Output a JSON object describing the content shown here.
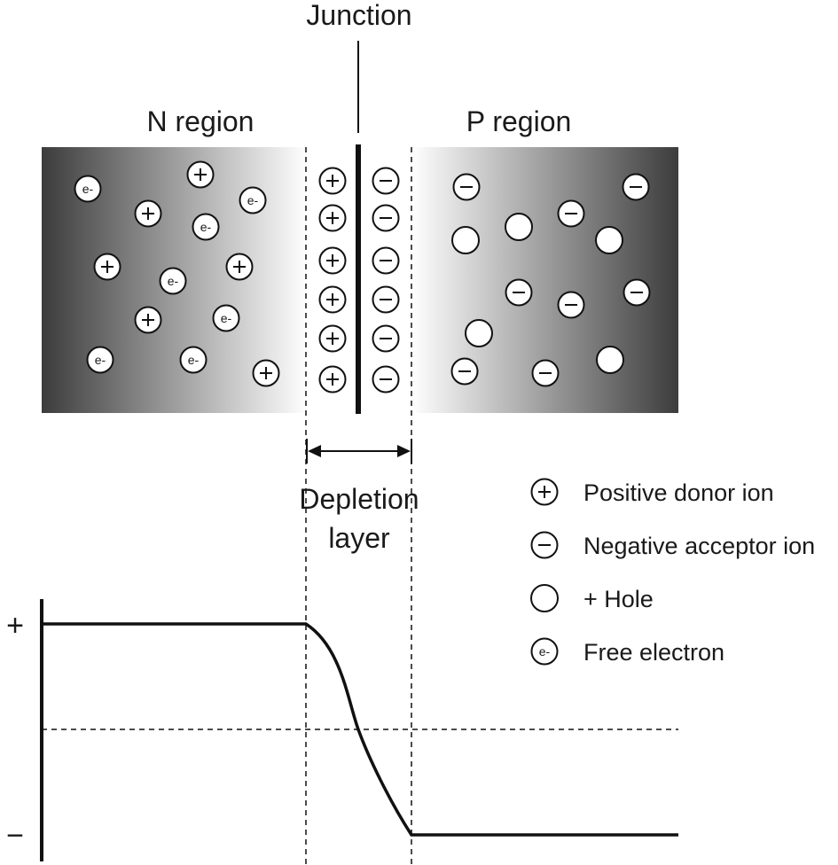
{
  "labels": {
    "junction": "Junction",
    "n_region": "N region",
    "p_region": "P region",
    "depletion_line1": "Depletion",
    "depletion_line2": "layer",
    "axis_plus": "+",
    "axis_minus": "−",
    "electron_symbol": "e-",
    "ion_plus_symbol": "+",
    "ion_minus_symbol": "−"
  },
  "legend": [
    {
      "symbol": "positive-ion",
      "label": "Positive donor ion"
    },
    {
      "symbol": "negative-ion",
      "label": "Negative acceptor ion"
    },
    {
      "symbol": "hole",
      "label": "+ Hole"
    },
    {
      "symbol": "electron",
      "label": "Free electron"
    }
  ],
  "colors": {
    "region_dark": "#3c3c3c",
    "region_light": "#ffffff",
    "stroke": "#111111"
  }
}
